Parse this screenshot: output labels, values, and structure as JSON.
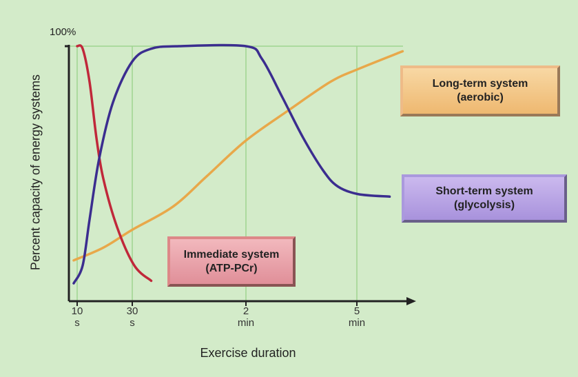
{
  "chart_data": {
    "type": "line",
    "ylabel": "Percent capacity of energy systems",
    "xlabel": "Exercise duration",
    "xlim": [
      0,
      400
    ],
    "xticks": [
      {
        "value": 10,
        "label": "10\ns"
      },
      {
        "value": 30,
        "label": "30\ns"
      },
      {
        "value": 120,
        "label": "2\nmin"
      },
      {
        "value": 300,
        "label": "5\nmin"
      }
    ],
    "ylim": [
      0,
      100
    ],
    "yticks": [
      {
        "value": 100,
        "label": "100%"
      }
    ],
    "grid": true,
    "series": [
      {
        "name": "Immediate system\n(ATP-PCr)",
        "color": "#c0283a",
        "x": [
          10,
          12,
          14.5,
          17,
          19.5,
          24.5,
          31.6,
          45
        ],
        "values": [
          100,
          99,
          86,
          64,
          48,
          29,
          14,
          8
        ]
      },
      {
        "name": "Short-term system\n(glycolysis)",
        "color": "#3b2d8f",
        "x": [
          5.8,
          12,
          14.5,
          18,
          23,
          30,
          45,
          67,
          120,
          146,
          179,
          213,
          246,
          269,
          302,
          358
        ],
        "values": [
          7,
          14,
          32,
          56,
          78,
          94,
          99,
          100,
          100,
          95,
          80,
          64,
          51,
          45,
          42,
          41
        ]
      },
      {
        "name": "Long-term system\n(aerobic)",
        "color": "#e8a84a",
        "x": [
          5.8,
          19.5,
          30,
          62,
          89,
          120,
          190,
          257,
          302,
          381
        ],
        "values": [
          16,
          21,
          28,
          37,
          49,
          63,
          75,
          86,
          91,
          98
        ]
      }
    ]
  }
}
